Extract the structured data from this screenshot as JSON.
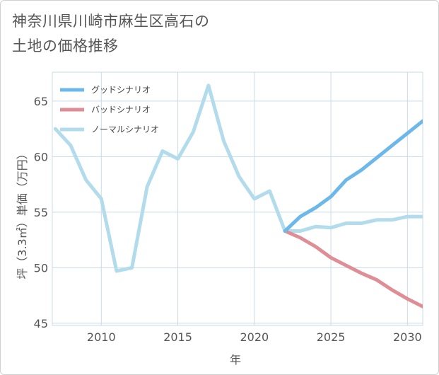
{
  "title_line1": "神奈川県川崎市麻生区高石の",
  "title_line2": "土地の価格推移",
  "chart_data": {
    "type": "line",
    "title": "神奈川県川崎市麻生区高石の土地の価格推移",
    "xlabel": "年",
    "ylabel": "坪（3.3㎡）単価（万円）",
    "xlim": [
      2006.8,
      2031
    ],
    "ylim": [
      44.8,
      67.6
    ],
    "xticks": [
      2010,
      2015,
      2020,
      2025,
      2030
    ],
    "yticks": [
      45,
      50,
      55,
      60,
      65
    ],
    "grid": true,
    "legend_position": "top-left",
    "series": [
      {
        "name": "グッドシナリオ",
        "color": "#6cb8ea",
        "x": [
          2022,
          2023,
          2024,
          2025,
          2026,
          2027,
          2028,
          2029,
          2030,
          2031
        ],
        "values": [
          53.3,
          54.6,
          55.4,
          56.4,
          57.9,
          58.8,
          59.9,
          61.0,
          62.1,
          63.2
        ]
      },
      {
        "name": "バッドシナリオ",
        "color": "#de8e94",
        "x": [
          2022,
          2023,
          2024,
          2025,
          2026,
          2027,
          2028,
          2029,
          2030,
          2031
        ],
        "values": [
          53.3,
          52.7,
          51.9,
          50.9,
          50.2,
          49.5,
          48.9,
          48.0,
          47.2,
          46.5
        ]
      },
      {
        "name": "ノーマルシナリオ",
        "color": "#b2dcec",
        "x": [
          2007,
          2008,
          2009,
          2010,
          2011,
          2012,
          2013,
          2014,
          2015,
          2016,
          2017,
          2018,
          2019,
          2020,
          2021,
          2022,
          2023,
          2024,
          2025,
          2026,
          2027,
          2028,
          2029,
          2030,
          2031
        ],
        "values": [
          62.5,
          61.0,
          57.9,
          56.2,
          49.7,
          50.0,
          57.3,
          60.5,
          59.8,
          62.2,
          66.4,
          61.4,
          58.2,
          56.2,
          56.9,
          53.3,
          53.3,
          53.7,
          53.6,
          54.0,
          54.0,
          54.3,
          54.3,
          54.6,
          54.6
        ]
      }
    ]
  }
}
